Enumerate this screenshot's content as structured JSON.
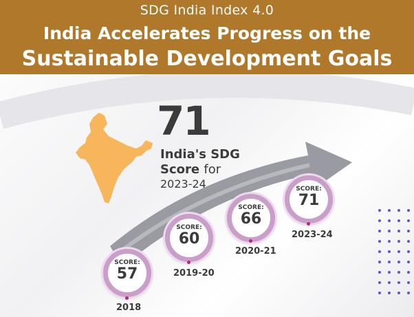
{
  "header": {
    "subtitle": "SDG India Index 4.0",
    "title_line1": "India Accelerates Progress on the",
    "title_line2": "Sustainable Development Goals"
  },
  "headline": {
    "score": "71",
    "label_line1": "India's SDG",
    "label_line2": "Score",
    "label_for": "for",
    "year": "2023-24"
  },
  "milestones": [
    {
      "label": "SCORE:",
      "score": "57",
      "year": "2018"
    },
    {
      "label": "SCORE:",
      "score": "60",
      "year": "2019-20"
    },
    {
      "label": "SCORE:",
      "score": "66",
      "year": "2020-21"
    },
    {
      "label": "SCORE:",
      "score": "71",
      "year": "2023-24"
    }
  ],
  "colors": {
    "header_bg": "#b0782a",
    "map_fill": "#f7b65b",
    "ring": "#c99ec9",
    "dots": "#6b4fcf"
  }
}
